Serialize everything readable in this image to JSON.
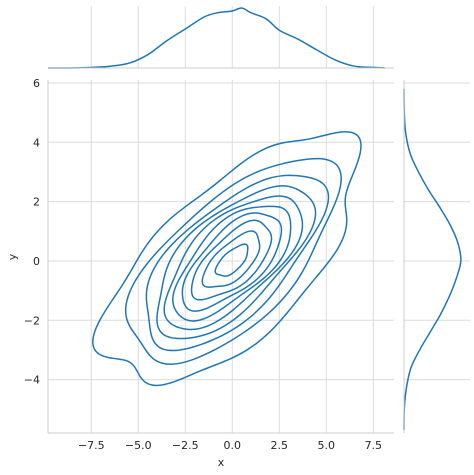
{
  "chart_data": {
    "type": "kde-jointplot",
    "xlabel": "x",
    "ylabel": "y",
    "xlim": [
      -9.8,
      8.6
    ],
    "ylim": [
      -5.8,
      6.1
    ],
    "xticks": [
      -7.5,
      -5.0,
      -2.5,
      0.0,
      2.5,
      5.0,
      7.5
    ],
    "xtick_labels": [
      "−7.5",
      "−5.0",
      "−2.5",
      "0.0",
      "2.5",
      "5.0",
      "7.5"
    ],
    "yticks": [
      -4,
      -2,
      0,
      2,
      4,
      6
    ],
    "ytick_labels": [
      "−4",
      "−2",
      "0",
      "2",
      "4",
      "6"
    ],
    "grid": true,
    "color": "#1f77b4",
    "kde_2d": {
      "center": [
        0.0,
        0.0
      ],
      "std_x": 3.0,
      "std_y": 1.85,
      "correlation": 0.65,
      "levels": [
        0.08,
        0.18,
        0.28,
        0.38,
        0.48,
        0.58,
        0.68,
        0.78,
        0.88,
        0.96
      ]
    },
    "marginal_x": {
      "x": [
        -9.8,
        -8,
        -6.5,
        -5.5,
        -4.5,
        -3.5,
        -2.5,
        -1.5,
        -0.8,
        0,
        0.5,
        1,
        1.8,
        2.5,
        3.5,
        4.5,
        5.5,
        6.5,
        7.5,
        8.1
      ],
      "density": [
        0.0,
        0.005,
        0.03,
        0.08,
        0.22,
        0.45,
        0.65,
        0.85,
        0.92,
        0.95,
        1.0,
        0.92,
        0.82,
        0.63,
        0.48,
        0.3,
        0.13,
        0.03,
        0.01,
        0.0
      ]
    },
    "marginal_y": {
      "y": [
        -5.7,
        -5,
        -4.3,
        -3.6,
        -3,
        -2.4,
        -1.8,
        -1.2,
        -0.6,
        0,
        0.6,
        1.2,
        1.8,
        2.4,
        3,
        3.6,
        4.3,
        5,
        5.8
      ],
      "density": [
        0.0,
        0.005,
        0.04,
        0.12,
        0.27,
        0.45,
        0.63,
        0.78,
        0.9,
        0.98,
        0.93,
        0.8,
        0.62,
        0.42,
        0.25,
        0.11,
        0.03,
        0.005,
        0.0
      ]
    }
  }
}
